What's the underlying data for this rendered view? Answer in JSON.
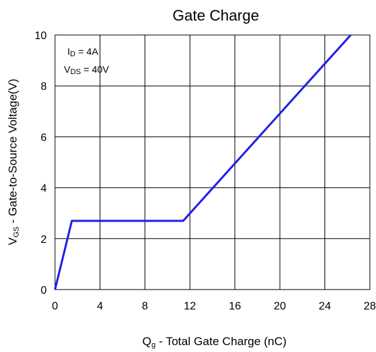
{
  "chart_data": {
    "type": "line",
    "title": "Gate Charge",
    "xlabel": {
      "main": "Q",
      "sub": "g",
      "rest": " - Total Gate Charge (nC)"
    },
    "ylabel": {
      "main": "V",
      "sub": "GS",
      "rest": " - Gate-to-Source Voltage(V)"
    },
    "xlim": [
      0,
      28
    ],
    "ylim": [
      0,
      10
    ],
    "x_ticks": [
      0,
      4,
      8,
      12,
      16,
      20,
      24,
      28
    ],
    "y_ticks": [
      0,
      2,
      4,
      6,
      8,
      10
    ],
    "x_tick_labels": [
      "0",
      "4",
      "8",
      "12",
      "16",
      "20",
      "24",
      "28"
    ],
    "y_tick_labels": [
      "0",
      "2",
      "4",
      "6",
      "8",
      "10"
    ],
    "grid": true,
    "annotations": [
      {
        "main": "I",
        "sub": "D",
        "rest": " = 4A"
      },
      {
        "main": "V",
        "sub": "DS",
        "rest": " = 40V"
      }
    ],
    "series": [
      {
        "color": "#1f1fe6",
        "x": [
          0,
          1.5,
          11.4,
          26.3
        ],
        "y": [
          0,
          2.7,
          2.7,
          10
        ]
      }
    ]
  }
}
